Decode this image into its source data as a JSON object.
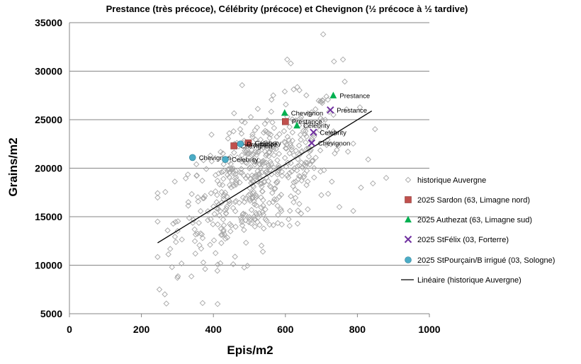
{
  "chart_data": {
    "type": "scatter",
    "title": "Prestance (très précoce), Célébrity (précoce) et Chevignon (½ précoce à ½ tardive)",
    "xlabel": "Epis/m2",
    "ylabel": "Grains/m2",
    "xlim": [
      0,
      1000
    ],
    "ylim": [
      5000,
      35000
    ],
    "x_ticks": [
      0,
      200,
      400,
      600,
      800,
      1000
    ],
    "y_ticks": [
      5000,
      10000,
      15000,
      20000,
      25000,
      30000,
      35000
    ],
    "x_tick_labels": [
      "0",
      "200",
      "400",
      "600",
      "800",
      "1000"
    ],
    "y_tick_labels": [
      "5000",
      "10000",
      "15000",
      "20000",
      "25000",
      "30000",
      "35000"
    ],
    "grid": "horizontal",
    "legend_position": "right",
    "colors": {
      "historique": "#a6a6a6",
      "sardon": "#c0504d",
      "authezat": "#00b050",
      "stfelix": "#7030a0",
      "stpourcain": "#4bacc6",
      "trend": "#000000",
      "grid": "#868686"
    },
    "historique_generator": {
      "count": 520,
      "note": "approximation of the historical Auvergne cloud",
      "x_mean": 530,
      "x_sd": 115,
      "y_base": 9200,
      "y_slope": 18.5,
      "y_sd": 3200
    },
    "historique_extra_points": [
      [
        705,
        33800
      ],
      [
        605,
        31200
      ],
      [
        760,
        31200
      ],
      [
        735,
        31000
      ],
      [
        615,
        30800
      ],
      [
        250,
        7500
      ],
      [
        265,
        7000
      ],
      [
        370,
        6100
      ],
      [
        300,
        8700
      ],
      [
        285,
        9800
      ],
      [
        830,
        20900
      ],
      [
        810,
        18000
      ],
      [
        880,
        19000
      ],
      [
        750,
        16000
      ],
      [
        455,
        10100
      ]
    ],
    "series": [
      {
        "name": "historique Auvergne",
        "marker": "diamond-open",
        "color": "#a6a6a6"
      },
      {
        "name": "2025 Sardon (63, Limagne nord)",
        "marker": "square",
        "color": "#c0504d",
        "points": [
          {
            "x": 600,
            "y": 24800,
            "label": "Prestance"
          },
          {
            "x": 497,
            "y": 22600,
            "label": "Celebrity"
          },
          {
            "x": 457,
            "y": 22300,
            "label": "Chevignon"
          }
        ]
      },
      {
        "name": "2025 Authezat (63, Limagne sud)",
        "marker": "triangle",
        "color": "#00b050",
        "points": [
          {
            "x": 733,
            "y": 27500,
            "label": "Prestance"
          },
          {
            "x": 598,
            "y": 25700,
            "label": "Chevignon"
          },
          {
            "x": 632,
            "y": 24400,
            "label": "Celebrity"
          }
        ]
      },
      {
        "name": "2025 StFélix (03, Forterre)",
        "marker": "x",
        "color": "#7030a0",
        "points": [
          {
            "x": 725,
            "y": 26000,
            "label": "Prestance"
          },
          {
            "x": 678,
            "y": 23700,
            "label": "Celebrity"
          },
          {
            "x": 673,
            "y": 22600,
            "label": "Chevignon"
          }
        ]
      },
      {
        "name": "2025 StPourçain/B irrigué (03, Sologne)",
        "marker": "circle",
        "color": "#4bacc6",
        "points": [
          {
            "x": 342,
            "y": 21100,
            "label": "Chevignon"
          },
          {
            "x": 433,
            "y": 20900,
            "label": "Celebrity"
          },
          {
            "x": 475,
            "y": 22500,
            "label": "Prestance"
          }
        ]
      },
      {
        "name": "Linéaire (historique Auvergne)",
        "type": "trendline",
        "color": "#000000",
        "x": [
          245,
          840
        ],
        "y": [
          12300,
          25900
        ]
      }
    ]
  }
}
